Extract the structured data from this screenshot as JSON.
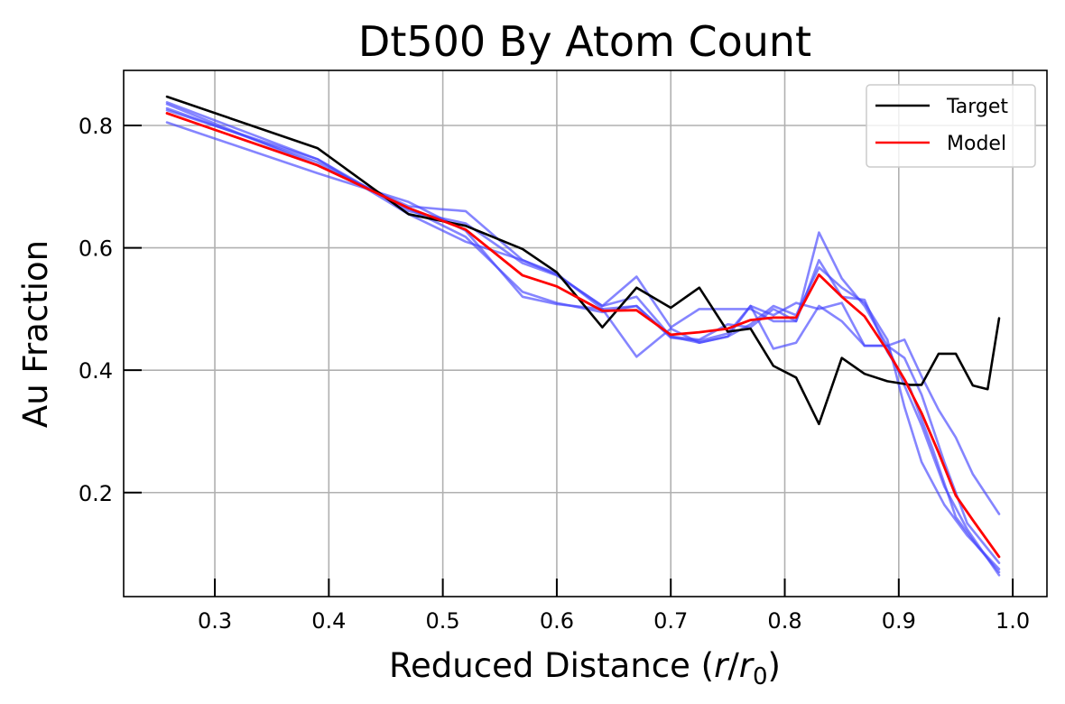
{
  "chart_data": {
    "type": "line",
    "title": "Dt500 By Atom Count",
    "xlabel": "Reduced Distance (",
    "xlabel_math": {
      "var1": "r",
      "slash": "/",
      "var2": "r",
      "sub": "0",
      "close": ")"
    },
    "ylabel": "Au Fraction",
    "xlim": [
      0.22,
      1.03
    ],
    "ylim": [
      0.03,
      0.89
    ],
    "grid": true,
    "legend_position": "top-right",
    "x_ticks": [
      0.3,
      0.4,
      0.5,
      0.6,
      0.7,
      0.8,
      0.9,
      1.0
    ],
    "x_tick_labels": [
      "0.3",
      "0.4",
      "0.5",
      "0.6",
      "0.7",
      "0.8",
      "0.9",
      "1.0"
    ],
    "y_ticks": [
      0.2,
      0.4,
      0.6,
      0.8
    ],
    "y_tick_labels": [
      "0.2",
      "0.4",
      "0.6",
      "0.8"
    ],
    "colors": {
      "target": "#000000",
      "model": "#ff0000",
      "ensemble": "#4444ff"
    },
    "legend": [
      {
        "label": "Target",
        "color": "#000000"
      },
      {
        "label": "Model",
        "color": "#ff0000"
      }
    ],
    "series": [
      {
        "name": "Target",
        "color": "#000000",
        "opacity": 1,
        "width": 2.6,
        "points": [
          [
            0.258,
            0.847
          ],
          [
            0.39,
            0.763
          ],
          [
            0.47,
            0.655
          ],
          [
            0.52,
            0.636
          ],
          [
            0.57,
            0.598
          ],
          [
            0.6,
            0.56
          ],
          [
            0.64,
            0.47
          ],
          [
            0.67,
            0.535
          ],
          [
            0.7,
            0.502
          ],
          [
            0.725,
            0.535
          ],
          [
            0.75,
            0.463
          ],
          [
            0.77,
            0.468
          ],
          [
            0.79,
            0.407
          ],
          [
            0.81,
            0.388
          ],
          [
            0.83,
            0.312
          ],
          [
            0.85,
            0.42
          ],
          [
            0.87,
            0.394
          ],
          [
            0.89,
            0.382
          ],
          [
            0.91,
            0.376
          ],
          [
            0.92,
            0.376
          ],
          [
            0.935,
            0.427
          ],
          [
            0.95,
            0.427
          ],
          [
            0.965,
            0.375
          ],
          [
            0.978,
            0.369
          ],
          [
            0.988,
            0.485
          ]
        ]
      },
      {
        "name": "",
        "color": "#4444ff",
        "opacity": 0.65,
        "width": 2.6,
        "points": [
          [
            0.258,
            0.838
          ],
          [
            0.39,
            0.745
          ],
          [
            0.47,
            0.66
          ],
          [
            0.52,
            0.64
          ],
          [
            0.57,
            0.575
          ],
          [
            0.6,
            0.555
          ],
          [
            0.64,
            0.505
          ],
          [
            0.67,
            0.52
          ],
          [
            0.7,
            0.455
          ],
          [
            0.725,
            0.45
          ],
          [
            0.75,
            0.475
          ],
          [
            0.77,
            0.47
          ],
          [
            0.79,
            0.5
          ],
          [
            0.81,
            0.48
          ],
          [
            0.83,
            0.58
          ],
          [
            0.85,
            0.52
          ],
          [
            0.87,
            0.515
          ],
          [
            0.89,
            0.43
          ],
          [
            0.91,
            0.37
          ],
          [
            0.93,
            0.27
          ],
          [
            0.95,
            0.16
          ],
          [
            0.97,
            0.11
          ],
          [
            0.988,
            0.07
          ]
        ]
      },
      {
        "name": "",
        "color": "#4444ff",
        "opacity": 0.65,
        "width": 2.6,
        "points": [
          [
            0.258,
            0.805
          ],
          [
            0.39,
            0.722
          ],
          [
            0.47,
            0.675
          ],
          [
            0.52,
            0.628
          ],
          [
            0.57,
            0.52
          ],
          [
            0.6,
            0.508
          ],
          [
            0.64,
            0.5
          ],
          [
            0.67,
            0.422
          ],
          [
            0.7,
            0.468
          ],
          [
            0.725,
            0.445
          ],
          [
            0.75,
            0.455
          ],
          [
            0.77,
            0.505
          ],
          [
            0.79,
            0.49
          ],
          [
            0.81,
            0.51
          ],
          [
            0.83,
            0.5
          ],
          [
            0.85,
            0.51
          ],
          [
            0.87,
            0.44
          ],
          [
            0.89,
            0.44
          ],
          [
            0.905,
            0.45
          ],
          [
            0.92,
            0.39
          ],
          [
            0.935,
            0.335
          ],
          [
            0.95,
            0.29
          ],
          [
            0.965,
            0.23
          ],
          [
            0.988,
            0.165
          ]
        ]
      },
      {
        "name": "",
        "color": "#4444ff",
        "opacity": 0.65,
        "width": 2.6,
        "points": [
          [
            0.258,
            0.828
          ],
          [
            0.39,
            0.74
          ],
          [
            0.47,
            0.664
          ],
          [
            0.52,
            0.618
          ],
          [
            0.57,
            0.528
          ],
          [
            0.6,
            0.51
          ],
          [
            0.64,
            0.495
          ],
          [
            0.67,
            0.505
          ],
          [
            0.7,
            0.453
          ],
          [
            0.725,
            0.448
          ],
          [
            0.75,
            0.46
          ],
          [
            0.77,
            0.505
          ],
          [
            0.79,
            0.435
          ],
          [
            0.81,
            0.445
          ],
          [
            0.83,
            0.505
          ],
          [
            0.85,
            0.48
          ],
          [
            0.87,
            0.44
          ],
          [
            0.89,
            0.44
          ],
          [
            0.905,
            0.375
          ],
          [
            0.92,
            0.31
          ],
          [
            0.94,
            0.21
          ],
          [
            0.96,
            0.14
          ],
          [
            0.988,
            0.065
          ]
        ]
      },
      {
        "name": "",
        "color": "#4444ff",
        "opacity": 0.65,
        "width": 2.6,
        "points": [
          [
            0.258,
            0.835
          ],
          [
            0.39,
            0.735
          ],
          [
            0.47,
            0.668
          ],
          [
            0.5,
            0.663
          ],
          [
            0.52,
            0.66
          ],
          [
            0.57,
            0.58
          ],
          [
            0.6,
            0.556
          ],
          [
            0.64,
            0.505
          ],
          [
            0.67,
            0.553
          ],
          [
            0.7,
            0.47
          ],
          [
            0.725,
            0.5
          ],
          [
            0.75,
            0.5
          ],
          [
            0.77,
            0.5
          ],
          [
            0.79,
            0.48
          ],
          [
            0.81,
            0.48
          ],
          [
            0.83,
            0.625
          ],
          [
            0.85,
            0.55
          ],
          [
            0.87,
            0.505
          ],
          [
            0.89,
            0.44
          ],
          [
            0.905,
            0.42
          ],
          [
            0.92,
            0.36
          ],
          [
            0.94,
            0.25
          ],
          [
            0.96,
            0.15
          ],
          [
            0.988,
            0.085
          ]
        ]
      },
      {
        "name": "",
        "color": "#4444ff",
        "opacity": 0.65,
        "width": 2.6,
        "points": [
          [
            0.258,
            0.825
          ],
          [
            0.39,
            0.745
          ],
          [
            0.47,
            0.655
          ],
          [
            0.52,
            0.61
          ],
          [
            0.57,
            0.58
          ],
          [
            0.6,
            0.558
          ],
          [
            0.64,
            0.5
          ],
          [
            0.67,
            0.505
          ],
          [
            0.7,
            0.455
          ],
          [
            0.725,
            0.445
          ],
          [
            0.75,
            0.455
          ],
          [
            0.77,
            0.475
          ],
          [
            0.79,
            0.505
          ],
          [
            0.81,
            0.49
          ],
          [
            0.83,
            0.568
          ],
          [
            0.85,
            0.535
          ],
          [
            0.87,
            0.51
          ],
          [
            0.89,
            0.45
          ],
          [
            0.905,
            0.34
          ],
          [
            0.92,
            0.25
          ],
          [
            0.94,
            0.18
          ],
          [
            0.96,
            0.13
          ],
          [
            0.988,
            0.075
          ]
        ]
      },
      {
        "name": "Model",
        "color": "#ff0000",
        "opacity": 1,
        "width": 2.8,
        "points": [
          [
            0.258,
            0.82
          ],
          [
            0.39,
            0.735
          ],
          [
            0.47,
            0.665
          ],
          [
            0.52,
            0.63
          ],
          [
            0.57,
            0.555
          ],
          [
            0.6,
            0.537
          ],
          [
            0.64,
            0.497
          ],
          [
            0.67,
            0.498
          ],
          [
            0.7,
            0.458
          ],
          [
            0.725,
            0.462
          ],
          [
            0.75,
            0.468
          ],
          [
            0.77,
            0.482
          ],
          [
            0.79,
            0.486
          ],
          [
            0.81,
            0.486
          ],
          [
            0.83,
            0.556
          ],
          [
            0.85,
            0.52
          ],
          [
            0.87,
            0.488
          ],
          [
            0.89,
            0.432
          ],
          [
            0.905,
            0.385
          ],
          [
            0.92,
            0.33
          ],
          [
            0.935,
            0.265
          ],
          [
            0.95,
            0.195
          ],
          [
            0.965,
            0.155
          ],
          [
            0.988,
            0.095
          ]
        ]
      }
    ]
  }
}
